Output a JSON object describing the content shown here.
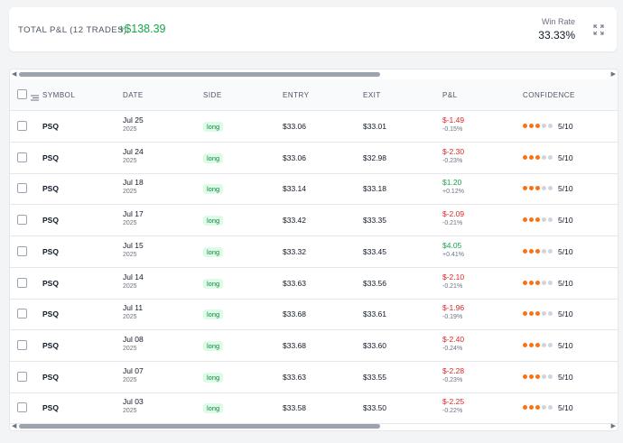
{
  "summary": {
    "total_label": "TOTAL P&L (12 TRADES)",
    "total_value": "+$138.39",
    "win_rate_label": "Win Rate",
    "win_rate_value": "33.33%",
    "expand_icon": "expand-icon"
  },
  "table": {
    "columns": [
      "SYMBOL",
      "DATE",
      "SIDE",
      "ENTRY",
      "EXIT",
      "P&L",
      "CONFIDENCE"
    ],
    "colors": {
      "negative": "#dc2626",
      "positive": "#16a34a",
      "dot_on": "#f97316",
      "dot_off": "#d1d5db"
    },
    "rows": [
      {
        "symbol": "PSQ",
        "date": "Jul 25",
        "year": "2025",
        "side": "long",
        "entry": "$33.06",
        "exit": "$33.01",
        "pnl": "$-1.49",
        "pct": "-0.15%",
        "confidence": "5/10",
        "confidence_level": 3,
        "positive": false
      },
      {
        "symbol": "PSQ",
        "date": "Jul 24",
        "year": "2025",
        "side": "long",
        "entry": "$33.06",
        "exit": "$32.98",
        "pnl": "$-2.30",
        "pct": "-0.23%",
        "confidence": "5/10",
        "confidence_level": 3,
        "positive": false
      },
      {
        "symbol": "PSQ",
        "date": "Jul 18",
        "year": "2025",
        "side": "long",
        "entry": "$33.14",
        "exit": "$33.18",
        "pnl": "$1.20",
        "pct": "+0.12%",
        "confidence": "5/10",
        "confidence_level": 3,
        "positive": true
      },
      {
        "symbol": "PSQ",
        "date": "Jul 17",
        "year": "2025",
        "side": "long",
        "entry": "$33.42",
        "exit": "$33.35",
        "pnl": "$-2.09",
        "pct": "-0.21%",
        "confidence": "5/10",
        "confidence_level": 3,
        "positive": false
      },
      {
        "symbol": "PSQ",
        "date": "Jul 15",
        "year": "2025",
        "side": "long",
        "entry": "$33.32",
        "exit": "$33.45",
        "pnl": "$4.05",
        "pct": "+0.41%",
        "confidence": "5/10",
        "confidence_level": 3,
        "positive": true
      },
      {
        "symbol": "PSQ",
        "date": "Jul 14",
        "year": "2025",
        "side": "long",
        "entry": "$33.63",
        "exit": "$33.56",
        "pnl": "$-2.10",
        "pct": "-0.21%",
        "confidence": "5/10",
        "confidence_level": 3,
        "positive": false
      },
      {
        "symbol": "PSQ",
        "date": "Jul 11",
        "year": "2025",
        "side": "long",
        "entry": "$33.68",
        "exit": "$33.61",
        "pnl": "$-1.96",
        "pct": "-0.19%",
        "confidence": "5/10",
        "confidence_level": 3,
        "positive": false
      },
      {
        "symbol": "PSQ",
        "date": "Jul 08",
        "year": "2025",
        "side": "long",
        "entry": "$33.68",
        "exit": "$33.60",
        "pnl": "$-2.40",
        "pct": "-0.24%",
        "confidence": "5/10",
        "confidence_level": 3,
        "positive": false
      },
      {
        "symbol": "PSQ",
        "date": "Jul 07",
        "year": "2025",
        "side": "long",
        "entry": "$33.63",
        "exit": "$33.55",
        "pnl": "$-2.28",
        "pct": "-0.23%",
        "confidence": "5/10",
        "confidence_level": 3,
        "positive": false
      },
      {
        "symbol": "PSQ",
        "date": "Jul 03",
        "year": "2025",
        "side": "long",
        "entry": "$33.58",
        "exit": "$33.50",
        "pnl": "$-2.25",
        "pct": "-0.22%",
        "confidence": "5/10",
        "confidence_level": 3,
        "positive": false
      }
    ]
  }
}
